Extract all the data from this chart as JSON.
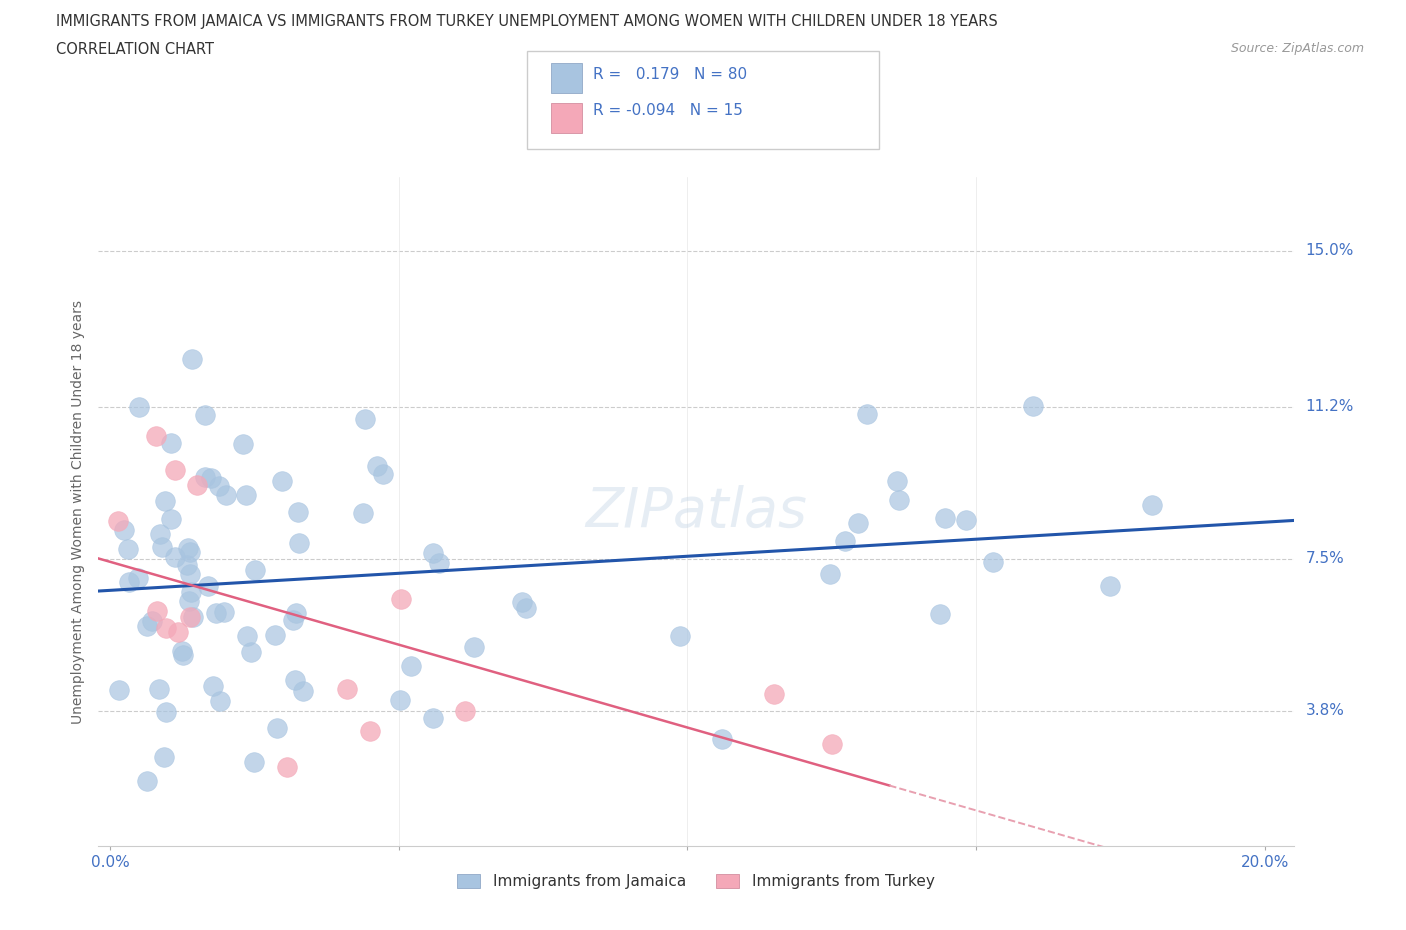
{
  "title_line1": "IMMIGRANTS FROM JAMAICA VS IMMIGRANTS FROM TURKEY UNEMPLOYMENT AMONG WOMEN WITH CHILDREN UNDER 18 YEARS",
  "title_line2": "CORRELATION CHART",
  "source": "Source: ZipAtlas.com",
  "ylabel": "Unemployment Among Women with Children Under 18 years",
  "xlim": [
    -0.002,
    0.205
  ],
  "ylim": [
    0.005,
    0.168
  ],
  "yticks": [
    0.038,
    0.075,
    0.112,
    0.15
  ],
  "ytick_labels": [
    "3.8%",
    "7.5%",
    "11.2%",
    "15.0%"
  ],
  "xticks": [
    0.0,
    0.05,
    0.1,
    0.15,
    0.2
  ],
  "xtick_labels": [
    "0.0%",
    "",
    "",
    "",
    "20.0%"
  ],
  "jamaica_color": "#a8c4e0",
  "turkey_color": "#f4a8b8",
  "jamaica_line_color": "#2255aa",
  "turkey_line_solid_color": "#e06080",
  "turkey_line_dash_color": "#e8a0b0",
  "grid_color": "#cccccc",
  "background_color": "#ffffff",
  "title_color": "#333333",
  "axis_label_color": "#666666",
  "tick_color": "#4472c4",
  "watermark": "ZIPatlas",
  "jamaica_R": 0.179,
  "jamaica_N": 80,
  "turkey_R": -0.094,
  "turkey_N": 15
}
